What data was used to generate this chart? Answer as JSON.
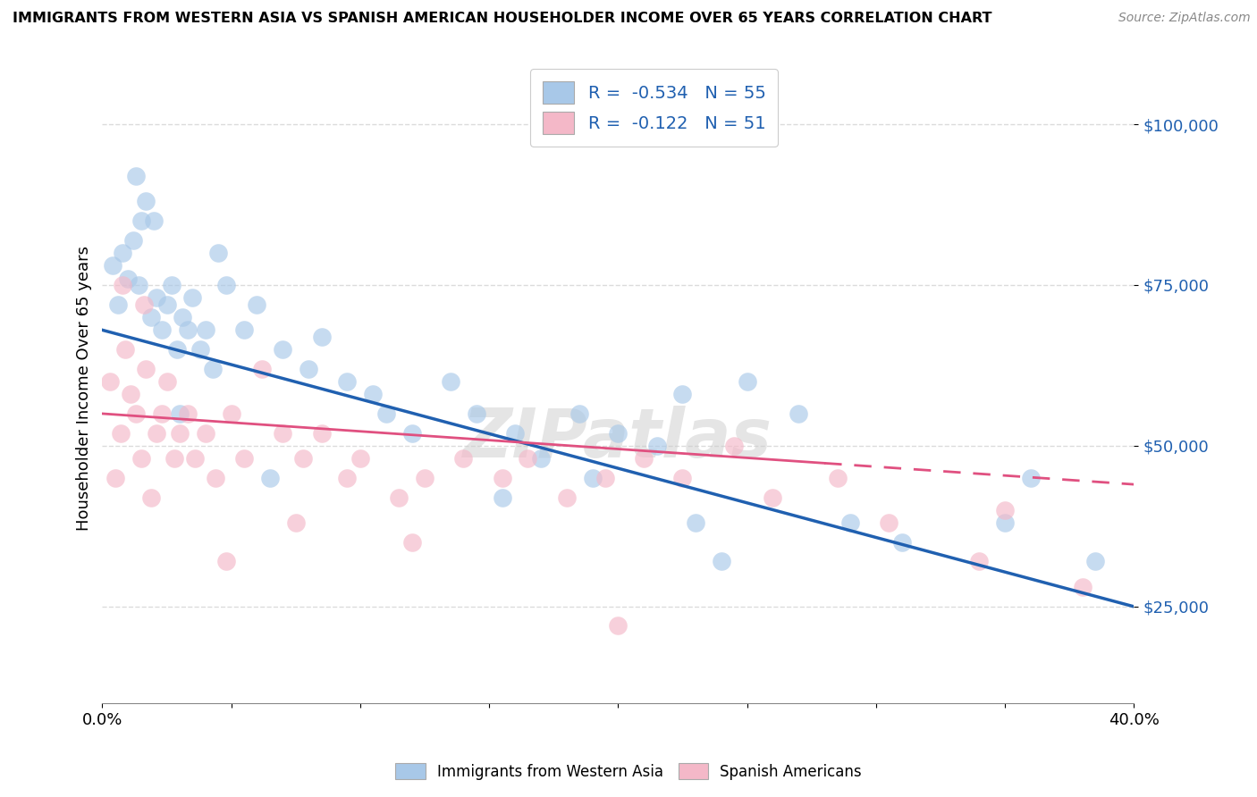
{
  "title": "IMMIGRANTS FROM WESTERN ASIA VS SPANISH AMERICAN HOUSEHOLDER INCOME OVER 65 YEARS CORRELATION CHART",
  "source": "Source: ZipAtlas.com",
  "ylabel": "Householder Income Over 65 years",
  "watermark": "ZIPatlas",
  "legend_label1": "Immigrants from Western Asia",
  "legend_label2": "Spanish Americans",
  "blue_color": "#a8c8e8",
  "pink_color": "#f4b8c8",
  "blue_line_color": "#2060b0",
  "pink_line_color": "#e05080",
  "R1": -0.534,
  "N1": 55,
  "R2": -0.122,
  "N2": 51,
  "x_min": 0.0,
  "x_max": 40.0,
  "y_min": 10000,
  "y_max": 108000,
  "y_ticks": [
    25000,
    50000,
    75000,
    100000
  ],
  "y_tick_labels": [
    "$25,000",
    "$50,000",
    "$75,000",
    "$100,000"
  ],
  "blue_line_x0": 0.0,
  "blue_line_y0": 68000,
  "blue_line_x1": 40.0,
  "blue_line_y1": 25000,
  "pink_line_x0": 0.0,
  "pink_line_y0": 55000,
  "pink_line_x1": 40.0,
  "pink_line_y1": 44000,
  "pink_line_solid_end": 28.0,
  "blue_scatter_x": [
    0.4,
    0.6,
    0.8,
    1.0,
    1.2,
    1.4,
    1.5,
    1.7,
    1.9,
    2.1,
    2.3,
    2.5,
    2.7,
    2.9,
    3.1,
    3.3,
    3.5,
    3.8,
    4.0,
    4.3,
    4.8,
    5.5,
    6.0,
    7.0,
    8.0,
    8.5,
    9.5,
    10.5,
    11.0,
    12.0,
    13.5,
    14.5,
    16.0,
    17.0,
    18.5,
    20.0,
    21.5,
    22.5,
    23.0,
    25.0,
    27.0,
    29.0,
    31.0,
    35.0,
    38.5
  ],
  "blue_scatter_y": [
    78000,
    72000,
    80000,
    76000,
    82000,
    75000,
    85000,
    88000,
    70000,
    73000,
    68000,
    72000,
    75000,
    65000,
    70000,
    68000,
    73000,
    65000,
    68000,
    62000,
    75000,
    68000,
    72000,
    65000,
    62000,
    67000,
    60000,
    58000,
    55000,
    52000,
    60000,
    55000,
    52000,
    48000,
    55000,
    52000,
    50000,
    58000,
    38000,
    60000,
    55000,
    38000,
    35000,
    38000,
    32000
  ],
  "blue_scatter_x2": [
    1.3,
    2.0,
    3.0,
    4.5,
    6.5,
    15.5,
    19.0,
    24.0,
    36.0
  ],
  "blue_scatter_y2": [
    92000,
    85000,
    55000,
    80000,
    45000,
    42000,
    45000,
    32000,
    45000
  ],
  "pink_scatter_x": [
    0.3,
    0.5,
    0.7,
    0.9,
    1.1,
    1.3,
    1.5,
    1.7,
    1.9,
    2.1,
    2.3,
    2.5,
    2.8,
    3.0,
    3.3,
    3.6,
    4.0,
    4.4,
    5.0,
    5.5,
    6.2,
    7.0,
    7.8,
    8.5,
    9.5,
    10.0,
    11.5,
    12.5,
    14.0,
    15.5,
    16.5,
    18.0,
    19.5,
    21.0,
    22.5,
    24.5,
    26.0,
    28.5,
    30.5,
    34.0,
    38.0
  ],
  "pink_scatter_y": [
    60000,
    45000,
    52000,
    65000,
    58000,
    55000,
    48000,
    62000,
    42000,
    52000,
    55000,
    60000,
    48000,
    52000,
    55000,
    48000,
    52000,
    45000,
    55000,
    48000,
    62000,
    52000,
    48000,
    52000,
    45000,
    48000,
    42000,
    45000,
    48000,
    45000,
    48000,
    42000,
    45000,
    48000,
    45000,
    50000,
    42000,
    45000,
    38000,
    32000,
    28000
  ],
  "pink_scatter_x2": [
    0.8,
    1.6,
    4.8,
    7.5,
    12.0,
    20.0,
    35.0
  ],
  "pink_scatter_y2": [
    75000,
    72000,
    32000,
    38000,
    35000,
    22000,
    40000
  ]
}
